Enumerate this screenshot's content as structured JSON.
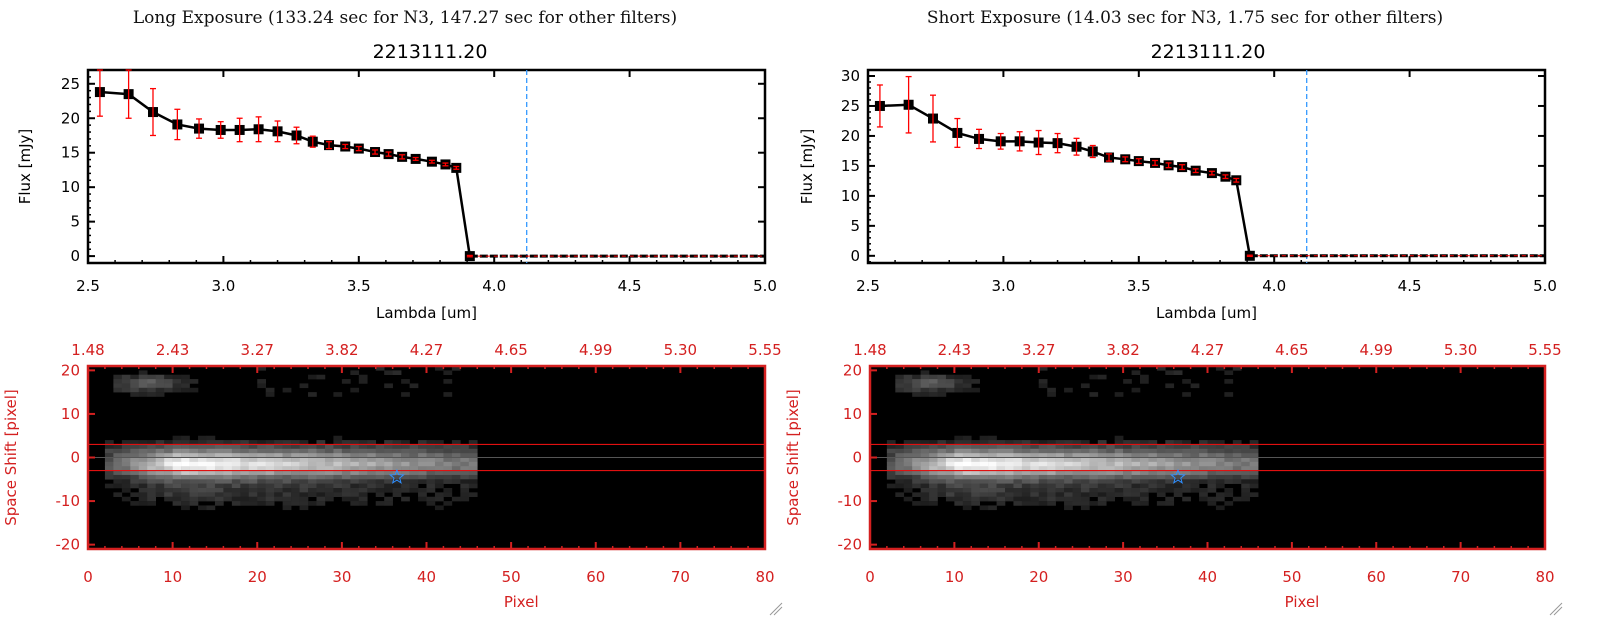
{
  "colors": {
    "data": "#000000",
    "error": "#ff0000",
    "marker_line": "#3399ff",
    "image_axis": "#d42020",
    "aperture": "#e01010",
    "star": "#2f8fff"
  },
  "chart_data": [
    {
      "type": "line",
      "title": "Long Exposure (133.24 sec for N3, 147.27 sec for other filters)",
      "subtitle": "2213111.20",
      "xlabel": "Lambda [um]",
      "ylabel": "Flux [mJy]",
      "xlim": [
        2.5,
        5.0
      ],
      "ylim": [
        -1,
        27
      ],
      "xticks": [
        "2.5",
        "3.0",
        "3.5",
        "4.0",
        "4.5",
        "5.0"
      ],
      "xtick_values": [
        2.5,
        3.0,
        3.5,
        4.0,
        4.5,
        5.0
      ],
      "yticks": [
        "0",
        "5",
        "10",
        "15",
        "20",
        "25"
      ],
      "ytick_values": [
        0,
        5,
        10,
        15,
        20,
        25
      ],
      "x": [
        2.544,
        2.65,
        2.74,
        2.83,
        2.91,
        2.99,
        3.06,
        3.13,
        3.2,
        3.27,
        3.33,
        3.39,
        3.45,
        3.5,
        3.56,
        3.61,
        3.66,
        3.71,
        3.77,
        3.82,
        3.86,
        3.91
      ],
      "y": [
        23.8,
        23.5,
        20.9,
        19.1,
        18.5,
        18.3,
        18.3,
        18.4,
        18.1,
        17.5,
        16.6,
        16.1,
        15.9,
        15.6,
        15.1,
        14.8,
        14.4,
        14.1,
        13.7,
        13.3,
        12.8,
        0
      ],
      "yerr": [
        3.5,
        3.5,
        3.4,
        2.2,
        1.4,
        1.2,
        1.7,
        1.8,
        1.5,
        1.2,
        0.8,
        0.5,
        0.3,
        0.3,
        0.3,
        0.3,
        0.3,
        0.2,
        0.2,
        0.2,
        0.2,
        0.1
      ],
      "zero_line_from": 3.91,
      "vline": 4.12,
      "image": {
        "ylabel": "Space Shift [pixel]",
        "xlabel": "Pixel",
        "xlim": [
          0,
          80
        ],
        "ylim": [
          -21,
          21
        ],
        "xticks": [
          "0",
          "10",
          "20",
          "30",
          "40",
          "50",
          "60",
          "70",
          "80"
        ],
        "xtick_values": [
          0,
          10,
          20,
          30,
          40,
          50,
          60,
          70,
          80
        ],
        "yticks": [
          "-20",
          "-10",
          "0",
          "10",
          "20"
        ],
        "ytick_values": [
          -20,
          -10,
          0,
          10,
          20
        ],
        "top_ticks": [
          "1.48",
          "2.43",
          "3.27",
          "3.82",
          "4.27",
          "4.65",
          "4.99",
          "5.30",
          "5.55"
        ],
        "aperture": [
          -3,
          3
        ],
        "center": 0,
        "star": [
          36.5,
          -4.5
        ]
      }
    },
    {
      "type": "line",
      "title": "Short Exposure (14.03 sec for N3, 1.75 sec for other filters)",
      "subtitle": "2213111.20",
      "xlabel": "Lambda [um]",
      "ylabel": "Flux [mJy]",
      "xlim": [
        2.5,
        5.0
      ],
      "ylim": [
        -1.2,
        31
      ],
      "xticks": [
        "2.5",
        "3.0",
        "3.5",
        "4.0",
        "4.5",
        "5.0"
      ],
      "xtick_values": [
        2.5,
        3.0,
        3.5,
        4.0,
        4.5,
        5.0
      ],
      "yticks": [
        "0",
        "5",
        "10",
        "15",
        "20",
        "25",
        "30"
      ],
      "ytick_values": [
        0,
        5,
        10,
        15,
        20,
        25,
        30
      ],
      "x": [
        2.544,
        2.65,
        2.74,
        2.83,
        2.91,
        2.99,
        3.06,
        3.13,
        3.2,
        3.27,
        3.33,
        3.39,
        3.45,
        3.5,
        3.56,
        3.61,
        3.66,
        3.71,
        3.77,
        3.82,
        3.86,
        3.91
      ],
      "y": [
        25.0,
        25.2,
        22.9,
        20.5,
        19.5,
        19.1,
        19.1,
        18.9,
        18.8,
        18.2,
        17.4,
        16.4,
        16.1,
        15.8,
        15.5,
        15.1,
        14.8,
        14.2,
        13.8,
        13.2,
        12.6,
        0
      ],
      "yerr": [
        3.5,
        4.7,
        3.9,
        2.4,
        1.6,
        1.3,
        1.6,
        2.0,
        1.6,
        1.4,
        1.0,
        0.6,
        0.4,
        0.4,
        0.4,
        0.4,
        0.4,
        0.3,
        0.3,
        0.3,
        0.3,
        0.1
      ],
      "zero_line_from": 3.91,
      "vline": 4.12,
      "image": {
        "ylabel": "Space Shift [pixel]",
        "xlabel": "Pixel",
        "xlim": [
          0,
          80
        ],
        "ylim": [
          -21,
          21
        ],
        "xticks": [
          "0",
          "10",
          "20",
          "30",
          "40",
          "50",
          "60",
          "70",
          "80"
        ],
        "xtick_values": [
          0,
          10,
          20,
          30,
          40,
          50,
          60,
          70,
          80
        ],
        "yticks": [
          "-20",
          "-10",
          "0",
          "10",
          "20"
        ],
        "ytick_values": [
          -20,
          -10,
          0,
          10,
          20
        ],
        "top_ticks": [
          "1.48",
          "2.43",
          "3.27",
          "3.82",
          "4.27",
          "4.65",
          "4.99",
          "5.30",
          "5.55"
        ],
        "aperture": [
          -3,
          3
        ],
        "center": 0,
        "star": [
          36.5,
          -4.5
        ]
      }
    }
  ]
}
